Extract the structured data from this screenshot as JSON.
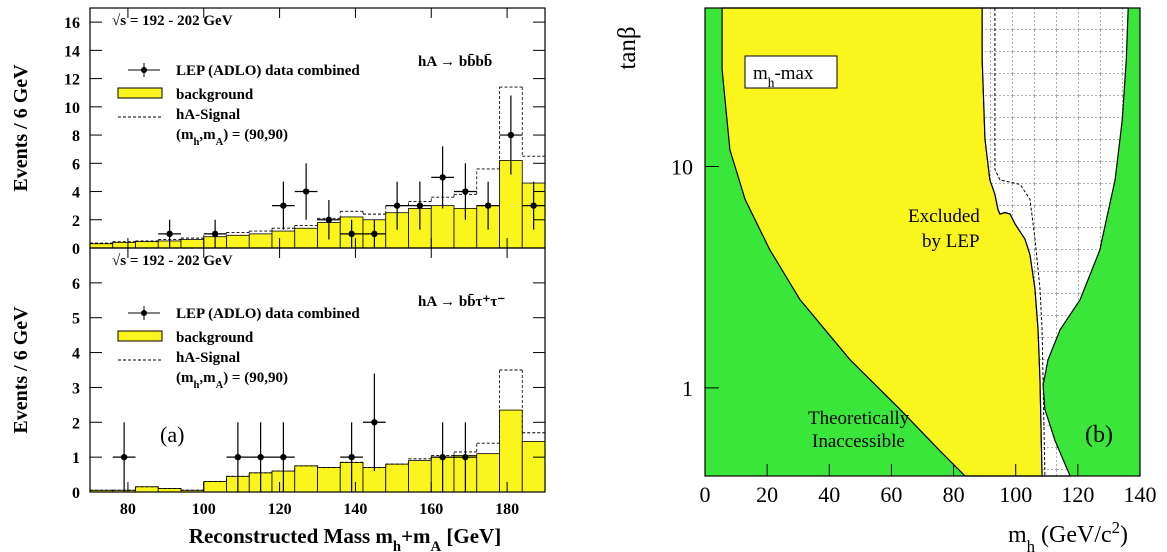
{
  "chart_data": [
    {
      "type": "histogram",
      "y_label": "Events / 6 GeV",
      "annotations": [
        "√s = 192 - 202 GeV",
        "hA → bb̄bb̄"
      ],
      "bins": [
        70,
        76,
        82,
        88,
        94,
        100,
        106,
        112,
        118,
        124,
        130,
        136,
        142,
        148,
        154,
        160,
        166,
        172,
        178,
        184,
        190
      ],
      "series": [
        {
          "name": "background",
          "color": "#fbf51e",
          "values": [
            0.3,
            0.4,
            0.45,
            0.5,
            0.6,
            0.8,
            0.9,
            1.0,
            1.2,
            1.4,
            1.8,
            2.2,
            2.0,
            2.5,
            2.8,
            3.0,
            2.8,
            3.0,
            6.2,
            4.6
          ]
        },
        {
          "name": "hA-Signal",
          "style": "dashed",
          "values": [
            0.05,
            0.05,
            0.05,
            0.1,
            0.1,
            0.2,
            0.2,
            0.2,
            0.2,
            0.2,
            0.3,
            0.4,
            0.4,
            0.5,
            0.5,
            0.6,
            1.0,
            2.6,
            5.2,
            1.9
          ]
        }
      ],
      "signal_label": [
        {
          "t": "(m"
        },
        {
          "t": "h",
          "shift": "sub"
        },
        {
          "t": ",m"
        },
        {
          "t": "A",
          "shift": "sub"
        },
        {
          "t": ") = (90,90)"
        }
      ],
      "points": {
        "name": "LEP (ADLO) data combined",
        "x": [
          91,
          103,
          121,
          127,
          133,
          139,
          145,
          151,
          157,
          163,
          169,
          175,
          181,
          187
        ],
        "values": [
          1,
          1,
          3,
          4,
          2,
          1,
          1,
          3,
          3,
          5,
          4,
          3,
          8,
          3
        ],
        "errors": [
          1,
          1,
          1.7,
          2,
          1.4,
          1,
          1,
          1.7,
          1.7,
          2.2,
          2,
          1.7,
          2.8,
          1.7
        ]
      },
      "xlim": [
        70,
        190
      ],
      "ylim": [
        0,
        17
      ],
      "yticks": [
        0,
        2,
        4,
        6,
        8,
        10,
        12,
        14,
        16
      ]
    },
    {
      "type": "histogram",
      "y_label": "Events / 6 GeV",
      "x_label": [
        {
          "t": "Reconstructed Mass m"
        },
        {
          "t": "h",
          "shift": "sub"
        },
        {
          "t": "+m"
        },
        {
          "t": "A",
          "shift": "sub"
        },
        {
          "t": " [GeV]"
        }
      ],
      "annotations": [
        "√s = 192 - 202 GeV",
        "hA → bb̄τ⁺τ⁻"
      ],
      "panel_label": "(a)",
      "bins": [
        70,
        76,
        82,
        88,
        94,
        100,
        106,
        112,
        118,
        124,
        130,
        136,
        142,
        148,
        154,
        160,
        166,
        172,
        178,
        184,
        190
      ],
      "series": [
        {
          "name": "background",
          "color": "#fbf51e",
          "values": [
            0.05,
            0.05,
            0.15,
            0.1,
            0.05,
            0.3,
            0.45,
            0.55,
            0.6,
            0.75,
            0.7,
            0.85,
            0.7,
            0.8,
            0.9,
            1.0,
            1.05,
            1.1,
            2.35,
            1.45
          ]
        },
        {
          "name": "hA-Signal",
          "style": "dashed",
          "values": [
            0,
            0,
            0,
            0,
            0,
            0,
            0,
            0,
            0,
            0,
            0,
            0,
            0,
            0,
            0.05,
            0.05,
            0.1,
            0.3,
            1.15,
            0.25
          ]
        }
      ],
      "signal_label": [
        {
          "t": "(m"
        },
        {
          "t": "h",
          "shift": "sub"
        },
        {
          "t": ",m"
        },
        {
          "t": "A",
          "shift": "sub"
        },
        {
          "t": ") = (90,90)"
        }
      ],
      "points": {
        "name": "LEP (ADLO) data combined",
        "x": [
          79,
          109,
          115,
          121,
          139,
          145,
          163,
          169
        ],
        "values": [
          1,
          1,
          1,
          1,
          1,
          2,
          1,
          1
        ],
        "errors": [
          1,
          1,
          1,
          1,
          1,
          1.4,
          1,
          1
        ]
      },
      "xlim": [
        70,
        190
      ],
      "xticks": [
        80,
        100,
        120,
        140,
        160,
        180
      ],
      "ylim": [
        0,
        7
      ],
      "yticks": [
        0,
        1,
        2,
        3,
        4,
        5,
        6
      ]
    },
    {
      "type": "region",
      "y_label": "tanβ",
      "x_label": [
        {
          "t": "m"
        },
        {
          "t": "h",
          "shift": "sub"
        },
        {
          "t": " (GeV/c"
        },
        {
          "t": "2",
          "shift": "sup"
        },
        {
          "t": ")"
        }
      ],
      "scenario": [
        {
          "t": "m"
        },
        {
          "t": "h",
          "shift": "sub"
        },
        {
          "t": "-max"
        }
      ],
      "annotations": [
        "Excluded",
        "by LEP",
        "Theoretically",
        "Inaccessible"
      ],
      "panel_label": "(b)",
      "background_color": "#3be63b",
      "regions": [
        {
          "color": "#fbf51e",
          "x": [
            5.5,
            5.5,
            8,
            12.9,
            20.9,
            30.6,
            46.7,
            62.8,
            75.6,
            83.7,
            108.5,
            107.8,
            107.2,
            106.2,
            104.6,
            103.0,
            99.8,
            98.2,
            96.6,
            94.9,
            94.3,
            93.3,
            91.7,
            90.1,
            89.2,
            89.2
          ],
          "y": [
            52,
            27.5,
            11.9,
            7.1,
            4.2,
            2.5,
            1.34,
            0.8,
            0.52,
            0.4,
            0.4,
            1.09,
            1.83,
            2.8,
            4.0,
            4.7,
            5.5,
            6.1,
            6.2,
            6.1,
            6.4,
            7.5,
            8.7,
            13.3,
            30.5,
            52
          ]
        },
        {
          "color": "#ffffff",
          "hatch": true,
          "x": [
            89.2,
            89.2,
            90.1,
            91.7,
            93.3,
            94.3,
            94.9,
            96.6,
            98.2,
            99.8,
            103.0,
            104.6,
            106.2,
            107.2,
            107.8,
            108.5,
            117.5,
            112.6,
            109.4,
            108.8,
            110.4,
            114.3,
            120.7,
            127.1,
            127.8,
            132.0,
            134.3,
            135.6,
            136.2
          ],
          "y": [
            52,
            30.5,
            13.3,
            8.7,
            7.5,
            6.4,
            6.1,
            6.2,
            6.1,
            5.5,
            4.7,
            4.0,
            2.8,
            1.83,
            1.09,
            0.4,
            0.4,
            0.58,
            0.8,
            1.03,
            1.34,
            1.83,
            2.5,
            4.2,
            4.7,
            8.7,
            16.3,
            30.5,
            52
          ]
        }
      ],
      "lines": [
        {
          "style": "dashed",
          "x": [
            93.3,
            93.3,
            94.9,
            101.4,
            104.6,
            106.2,
            107.8,
            108.5,
            109.4
          ],
          "y": [
            52,
            9.7,
            8.7,
            8.3,
            7.1,
            4.7,
            2.8,
            1.83,
            0.4
          ]
        }
      ],
      "xlim": [
        0,
        140
      ],
      "xticks": [
        0,
        20,
        40,
        60,
        80,
        100,
        120,
        140
      ],
      "ylim": [
        0.4,
        52
      ],
      "yticks": [
        1,
        10
      ],
      "log_y": true
    }
  ]
}
